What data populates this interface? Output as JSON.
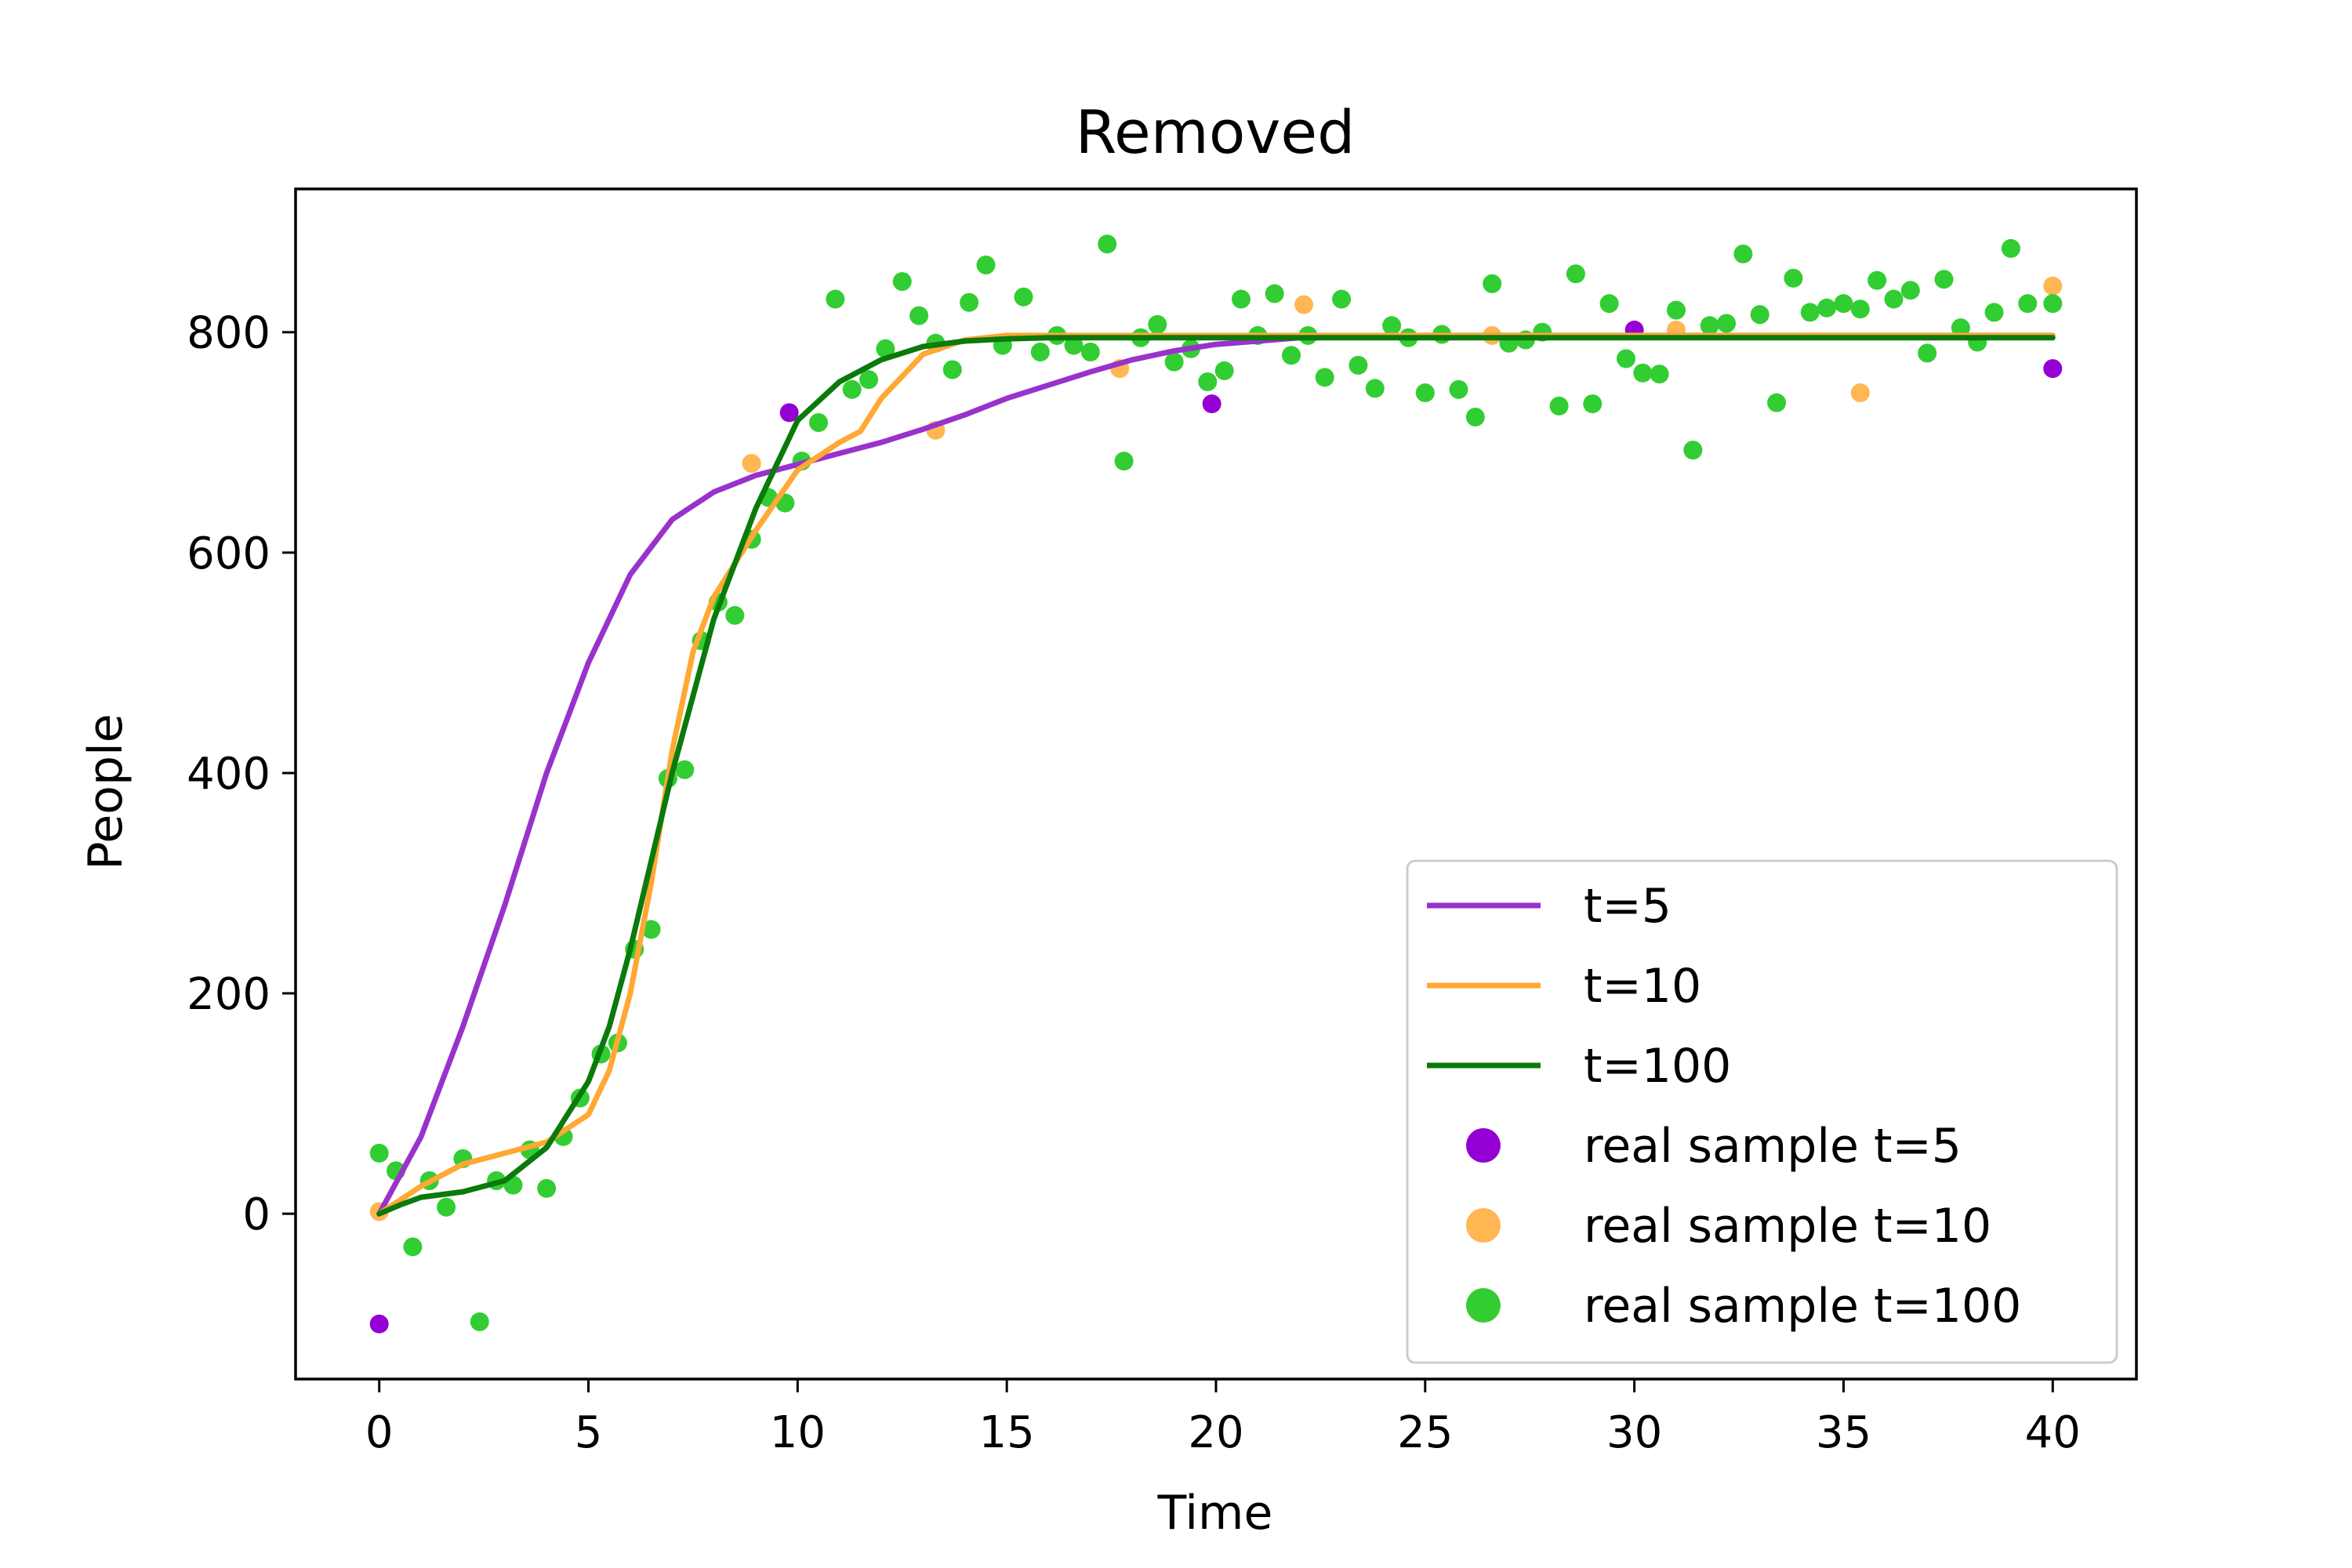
{
  "chart_data": {
    "type": "line",
    "title": "Removed",
    "xlabel": "Time",
    "ylabel": "People",
    "xlim": [
      -2,
      42
    ],
    "ylim": [
      -150,
      930
    ],
    "xticks": [
      0,
      5,
      10,
      15,
      20,
      25,
      30,
      35,
      40
    ],
    "yticks": [
      0,
      200,
      400,
      600,
      800
    ],
    "xtick_labels": [
      "0",
      "5",
      "10",
      "15",
      "20",
      "25",
      "30",
      "35",
      "40"
    ],
    "ytick_labels": [
      "0",
      "200",
      "400",
      "600",
      "800"
    ],
    "grid": false,
    "legend_position": "lower-right",
    "series": [
      {
        "name": "t=5",
        "kind": "line",
        "color": "#9932CC",
        "x": [
          0,
          1,
          2,
          3,
          3.5,
          4,
          4.5,
          5,
          6,
          7,
          8,
          9,
          10,
          11,
          12,
          13,
          14,
          15,
          16,
          17,
          18,
          19,
          20,
          22,
          25,
          30,
          35,
          40
        ],
        "y": [
          0,
          70,
          170,
          280,
          340,
          400,
          450,
          500,
          580,
          630,
          655,
          670,
          680,
          690,
          700,
          712,
          725,
          740,
          752,
          764,
          775,
          783,
          789,
          795,
          797,
          797,
          797,
          797
        ]
      },
      {
        "name": "t=10",
        "kind": "line",
        "color": "#FFA833",
        "x": [
          0,
          1,
          2,
          3,
          4,
          5,
          5.5,
          6,
          6.5,
          7,
          7.5,
          8,
          9,
          10,
          11,
          11.5,
          12,
          13,
          14,
          15,
          16,
          20,
          25,
          30,
          35,
          40
        ],
        "y": [
          0,
          25,
          45,
          55,
          65,
          90,
          130,
          200,
          300,
          420,
          510,
          560,
          620,
          675,
          700,
          710,
          740,
          780,
          793,
          797,
          797,
          797,
          797,
          797,
          797,
          797
        ]
      },
      {
        "name": "t=100",
        "kind": "line",
        "color": "#0A7A0A",
        "x": [
          0,
          0.5,
          1,
          2,
          3,
          4,
          5,
          5.5,
          6,
          6.5,
          7,
          7.5,
          8,
          9,
          10,
          11,
          12,
          13,
          14,
          15,
          16,
          20,
          25,
          30,
          35,
          40
        ],
        "y": [
          0,
          8,
          15,
          20,
          30,
          60,
          120,
          170,
          240,
          320,
          400,
          470,
          540,
          640,
          720,
          755,
          775,
          787,
          792,
          794,
          795,
          795,
          795,
          795,
          795,
          795
        ]
      },
      {
        "name": "real sample t=5",
        "kind": "scatter",
        "color": "#9400D3",
        "points": [
          [
            0,
            -100
          ],
          [
            9.8,
            727
          ],
          [
            19.9,
            735
          ],
          [
            30,
            802
          ],
          [
            40,
            767
          ]
        ]
      },
      {
        "name": "real sample t=10",
        "kind": "scatter",
        "color": "#FFB653",
        "points": [
          [
            0,
            2
          ],
          [
            8.9,
            681
          ],
          [
            13.3,
            711
          ],
          [
            17.7,
            767
          ],
          [
            22.1,
            825
          ],
          [
            26.6,
            797
          ],
          [
            31,
            802
          ],
          [
            35.4,
            745
          ],
          [
            40,
            842
          ]
        ]
      },
      {
        "name": "real sample t=100",
        "kind": "scatter",
        "color": "#32CD32",
        "points": [
          [
            0,
            55
          ],
          [
            0.4,
            39
          ],
          [
            0.8,
            -30
          ],
          [
            1.2,
            30
          ],
          [
            1.6,
            6
          ],
          [
            2,
            50
          ],
          [
            2.4,
            -98
          ],
          [
            2.8,
            30
          ],
          [
            3.2,
            26
          ],
          [
            3.6,
            58
          ],
          [
            4,
            23
          ],
          [
            4.4,
            70
          ],
          [
            4.8,
            105
          ],
          [
            5.3,
            145
          ],
          [
            5.7,
            155
          ],
          [
            6.1,
            240
          ],
          [
            6.5,
            258
          ],
          [
            6.9,
            395
          ],
          [
            7.3,
            403
          ],
          [
            7.7,
            520
          ],
          [
            8.1,
            555
          ],
          [
            8.5,
            543
          ],
          [
            8.9,
            612
          ],
          [
            9.3,
            650
          ],
          [
            9.7,
            645
          ],
          [
            10.1,
            683
          ],
          [
            10.5,
            718
          ],
          [
            10.9,
            830
          ],
          [
            11.3,
            748
          ],
          [
            11.7,
            757
          ],
          [
            12.1,
            785
          ],
          [
            12.5,
            846
          ],
          [
            12.9,
            815
          ],
          [
            13.3,
            790
          ],
          [
            13.7,
            766
          ],
          [
            14.1,
            827
          ],
          [
            14.5,
            861
          ],
          [
            14.9,
            788
          ],
          [
            15.4,
            832
          ],
          [
            15.8,
            782
          ],
          [
            16.2,
            797
          ],
          [
            16.6,
            788
          ],
          [
            17,
            782
          ],
          [
            17.4,
            880
          ],
          [
            17.8,
            683
          ],
          [
            18.2,
            795
          ],
          [
            18.6,
            807
          ],
          [
            19,
            773
          ],
          [
            19.4,
            785
          ],
          [
            19.8,
            755
          ],
          [
            20.2,
            765
          ],
          [
            20.6,
            830
          ],
          [
            21,
            797
          ],
          [
            21.4,
            835
          ],
          [
            21.8,
            779
          ],
          [
            22.2,
            797
          ],
          [
            22.6,
            759
          ],
          [
            23,
            830
          ],
          [
            23.4,
            770
          ],
          [
            23.8,
            749
          ],
          [
            24.2,
            806
          ],
          [
            24.6,
            795
          ],
          [
            25,
            745
          ],
          [
            25.4,
            798
          ],
          [
            25.8,
            748
          ],
          [
            26.2,
            723
          ],
          [
            26.6,
            844
          ],
          [
            27,
            790
          ],
          [
            27.4,
            793
          ],
          [
            27.8,
            800
          ],
          [
            28.2,
            733
          ],
          [
            28.6,
            853
          ],
          [
            29,
            735
          ],
          [
            29.4,
            826
          ],
          [
            29.8,
            776
          ],
          [
            30.2,
            763
          ],
          [
            30.6,
            762
          ],
          [
            31,
            820
          ],
          [
            31.4,
            693
          ],
          [
            31.8,
            806
          ],
          [
            32.2,
            808
          ],
          [
            32.6,
            871
          ],
          [
            33,
            816
          ],
          [
            33.4,
            736
          ],
          [
            33.8,
            849
          ],
          [
            34.2,
            818
          ],
          [
            34.6,
            822
          ],
          [
            35,
            826
          ],
          [
            35.4,
            821
          ],
          [
            35.8,
            847
          ],
          [
            36.2,
            830
          ],
          [
            36.6,
            838
          ],
          [
            37,
            781
          ],
          [
            37.4,
            848
          ],
          [
            37.8,
            804
          ],
          [
            38.2,
            791
          ],
          [
            38.6,
            818
          ],
          [
            39,
            876
          ],
          [
            39.4,
            826
          ],
          [
            40,
            826
          ]
        ]
      }
    ]
  }
}
